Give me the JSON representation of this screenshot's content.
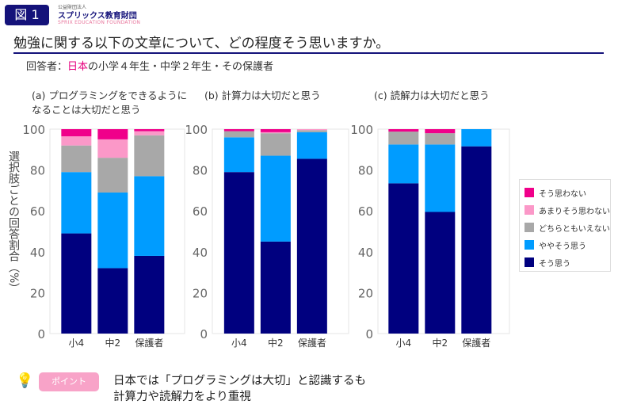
{
  "header": {
    "figure_label": "図 1",
    "logo_small": "公益財団法人",
    "logo_main": "スプリックス教育財団",
    "logo_en": "SPRIX EDUCATION FOUNDATION"
  },
  "title": "勉強に関する以下の文章について、どの程度そう思いますか。",
  "respondents": {
    "prefix": "回答者：",
    "highlight": "日本",
    "rest": "の小学４年生・中学２年生・その保護者"
  },
  "colors": {
    "そう思わない": "#f0008a",
    "あまりそう思わない": "#fb98c8",
    "どちらともいえない": "#a8a8a8",
    "ややそう思う": "#009cff",
    "そう思う": "#00007f"
  },
  "chart_data": [
    {
      "type": "bar",
      "stacked": true,
      "title_line1": "(a) プログラミングをできるように",
      "title_line2": "なることは大切だと思う",
      "ylabel": "選択肢ごとの回答割合（%）",
      "ylim": [
        0,
        100
      ],
      "yticks": [
        0,
        20,
        40,
        60,
        80,
        100
      ],
      "categories": [
        "小4",
        "中2",
        "保護者"
      ],
      "series": [
        {
          "name": "そう思う",
          "values": [
            49,
            32,
            38
          ]
        },
        {
          "name": "ややそう思う",
          "values": [
            30,
            37,
            39
          ]
        },
        {
          "name": "どちらともいえない",
          "values": [
            13,
            17,
            20
          ]
        },
        {
          "name": "あまりそう思わない",
          "values": [
            4.5,
            9,
            2
          ]
        },
        {
          "name": "そう思わない",
          "values": [
            3.5,
            5,
            1
          ]
        }
      ]
    },
    {
      "type": "bar",
      "stacked": true,
      "title_line1": "(b) 計算力は大切だと思う",
      "title_line2": "",
      "ylim": [
        0,
        100
      ],
      "yticks": [
        0,
        20,
        40,
        60,
        80,
        100
      ],
      "categories": [
        "小4",
        "中2",
        "保護者"
      ],
      "series": [
        {
          "name": "そう思う",
          "values": [
            79,
            45,
            85.5
          ]
        },
        {
          "name": "ややそう思う",
          "values": [
            17,
            42,
            13
          ]
        },
        {
          "name": "どちらともいえない",
          "values": [
            3,
            11,
            1
          ]
        },
        {
          "name": "あまりそう思わない",
          "values": [
            0,
            0.5,
            0.5
          ]
        },
        {
          "name": "そう思わない",
          "values": [
            1,
            1.5,
            0
          ]
        }
      ]
    },
    {
      "type": "bar",
      "stacked": true,
      "title_line1": "(c) 読解力は大切だと思う",
      "title_line2": "",
      "ylim": [
        0,
        100
      ],
      "yticks": [
        0,
        20,
        40,
        60,
        80,
        100
      ],
      "categories": [
        "小4",
        "中2",
        "保護者"
      ],
      "series": [
        {
          "name": "そう思う",
          "values": [
            73.5,
            59.5,
            91.6
          ]
        },
        {
          "name": "ややそう思う",
          "values": [
            19,
            33,
            8.4
          ]
        },
        {
          "name": "どちらともいえない",
          "values": [
            6.3,
            5.5,
            0
          ]
        },
        {
          "name": "あまりそう思わない",
          "values": [
            0,
            0,
            0
          ]
        },
        {
          "name": "そう思わない",
          "values": [
            1.2,
            2,
            0
          ]
        }
      ]
    }
  ],
  "legend": [
    "そう思わない",
    "あまりそう思わない",
    "どちらともいえない",
    "ややそう思う",
    "そう思う"
  ],
  "point": {
    "icon": "lightbulb-icon",
    "label": "ポイント",
    "line1": "日本では「プログラミングは大切」と認識するも",
    "line2": "計算力や読解力をより重視"
  }
}
